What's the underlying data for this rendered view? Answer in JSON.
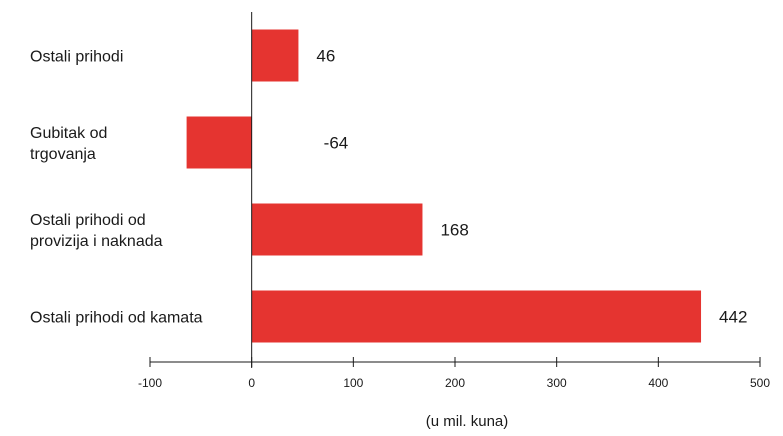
{
  "chart_data": {
    "type": "bar",
    "orientation": "horizontal",
    "categories": [
      "Ostali prihodi",
      "Gubitak od trgovanja",
      "Ostali prihodi od provizija i naknada",
      "Ostali prihodi od kamata"
    ],
    "category_lines": [
      [
        "Ostali prihodi"
      ],
      [
        "Gubitak od",
        "trgovanja"
      ],
      [
        "Ostali prihodi od",
        "provizija i naknada"
      ],
      [
        "Ostali prihodi od kamata"
      ]
    ],
    "values": [
      46,
      -64,
      168,
      442
    ],
    "value_labels": [
      "46",
      "-64",
      "168",
      "442"
    ],
    "xlim": [
      -100,
      500
    ],
    "xticks": [
      -100,
      0,
      100,
      200,
      300,
      400,
      500
    ],
    "xtick_labels": [
      "-100",
      "0",
      "100",
      "200",
      "300",
      "400",
      "500"
    ],
    "xlabel": "(u mil. kuna)",
    "ylabel": "",
    "title": "",
    "grid": false,
    "bar_color": "#e53430"
  }
}
